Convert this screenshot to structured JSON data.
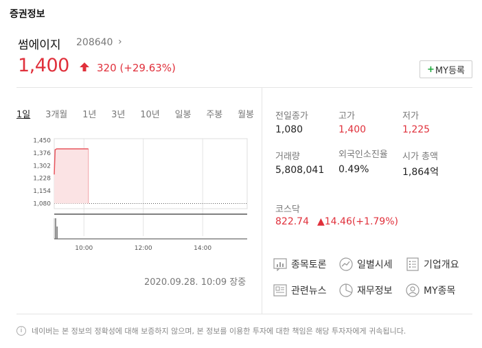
{
  "section_title": "증권정보",
  "stock": {
    "name": "썸에이지",
    "code": "208640",
    "price": "1,400",
    "change": "320",
    "change_pct": "(+29.63%)",
    "my_button": "MY등록"
  },
  "tabs": [
    "1일",
    "3개월",
    "1년",
    "3년",
    "10년",
    "일봉",
    "주봉",
    "월봉"
  ],
  "chart_data": {
    "type": "line",
    "y_ticks": [
      "1,450",
      "1,376",
      "1,302",
      "1,228",
      "1,154",
      "1,080"
    ],
    "x_ticks": [
      "10:00",
      "12:00",
      "14:00"
    ],
    "ylim": [
      1050,
      1460
    ],
    "prev_close": 1080,
    "series": [
      {
        "points": [
          [
            9.0,
            1250
          ],
          [
            9.03,
            1395
          ],
          [
            9.08,
            1400
          ],
          [
            9.6,
            1400
          ],
          [
            9.93,
            1400
          ],
          [
            10.15,
            1400
          ]
        ]
      }
    ],
    "volume": [
      {
        "x": 9.0,
        "value": 1.0
      },
      {
        "x": 9.05,
        "value": 0.6
      }
    ]
  },
  "timestamp": "2020.09.28. 10:09 장중",
  "info": {
    "prev_close_label": "전일종가",
    "prev_close": "1,080",
    "high_label": "고가",
    "high": "1,400",
    "low_label": "저가",
    "low": "1,225",
    "volume_label": "거래량",
    "volume": "5,808,041",
    "foreign_label": "외국인소진율",
    "foreign": "0.49%",
    "mcap_label": "시가 총액",
    "mcap": "1,864억"
  },
  "kosdaq": {
    "label": "코스닥",
    "value": "822.74",
    "change": "▲14.46(+1.79%)"
  },
  "links": {
    "discussion": "종목토론",
    "daily": "일별시세",
    "company": "기업개요",
    "news": "관련뉴스",
    "financial": "재무정보",
    "my_stocks": "MY종목"
  },
  "notice": "네이버는 본 정보의 정확성에 대해 보증하지 않으며, 본 정보를 이용한 투자에 대한 책임은 해당 투자자에게 귀속됩니다.",
  "colors": {
    "up": "#e0303b",
    "my_plus": "#1aa83a"
  }
}
